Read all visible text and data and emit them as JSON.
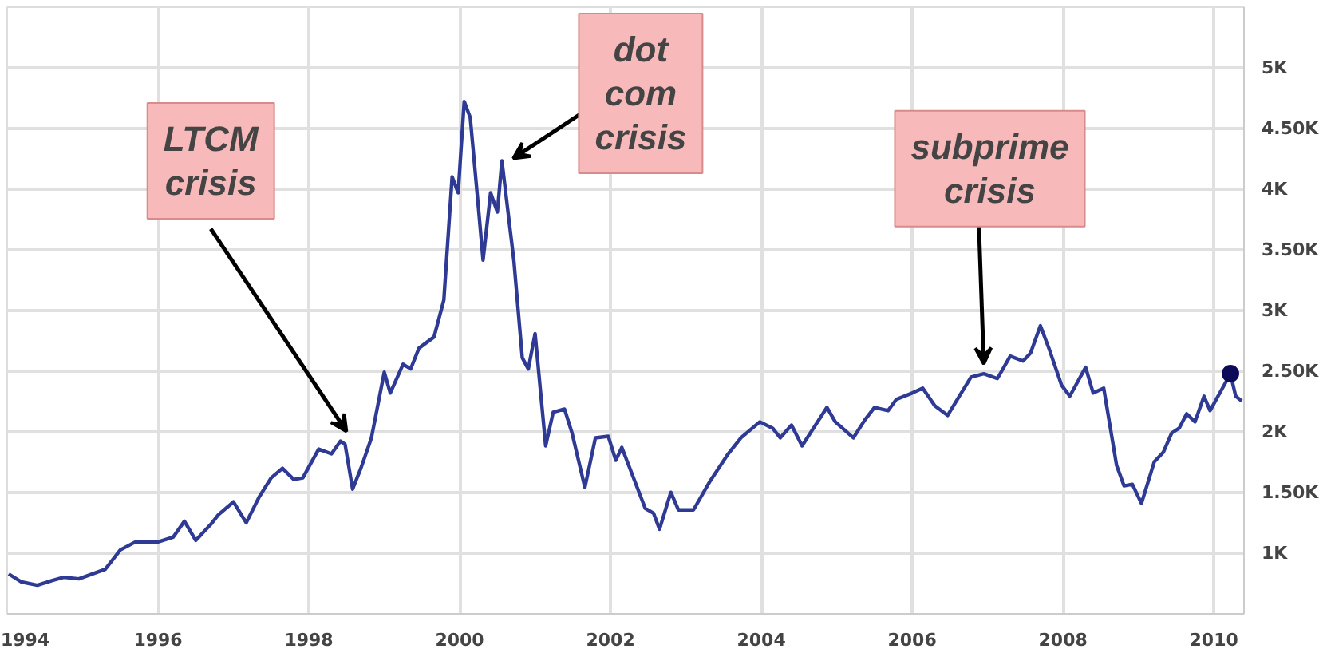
{
  "chart_data": {
    "type": "line",
    "x": [
      1994.02,
      1994.19,
      1994.4,
      1994.6,
      1994.75,
      1994.95,
      1995.3,
      1995.5,
      1995.7,
      1996.0,
      1996.2,
      1996.35,
      1996.5,
      1996.7,
      1996.8,
      1997.0,
      1997.17,
      1997.34,
      1997.5,
      1997.65,
      1997.8,
      1997.92,
      1998.13,
      1998.3,
      1998.42,
      1998.48,
      1998.58,
      1998.69,
      1998.83,
      1999.0,
      1999.08,
      1999.25,
      1999.35,
      1999.46,
      1999.66,
      1999.79,
      1999.9,
      1999.98,
      2000.06,
      2000.14,
      2000.25,
      2000.31,
      2000.41,
      2000.5,
      2000.56,
      2000.72,
      2000.83,
      2000.91,
      2001.0,
      2001.14,
      2001.24,
      2001.39,
      2001.49,
      2001.66,
      2001.8,
      2001.97,
      2002.07,
      2002.15,
      2002.46,
      2002.57,
      2002.65,
      2002.8,
      2002.9,
      2003.1,
      2003.32,
      2003.56,
      2003.73,
      2003.98,
      2004.15,
      2004.25,
      2004.4,
      2004.54,
      2004.87,
      2004.98,
      2005.22,
      2005.37,
      2005.5,
      2005.68,
      2005.79,
      2006.0,
      2006.14,
      2006.3,
      2006.47,
      2006.78,
      2006.95,
      2007.13,
      2007.3,
      2007.47,
      2007.57,
      2007.7,
      2007.82,
      2007.98,
      2008.09,
      2008.3,
      2008.4,
      2008.54,
      2008.71,
      2008.81,
      2008.92,
      2009.04,
      2009.21,
      2009.33,
      2009.44,
      2009.54,
      2009.64,
      2009.75,
      2009.87,
      2009.95,
      2010.22,
      2010.29,
      2010.37
    ],
    "series": [
      {
        "color": "#2e3a94",
        "values": [
          829,
          763,
          736,
          776,
          802,
          789,
          868,
          1027,
          1093,
          1093,
          1132,
          1264,
          1106,
          1238,
          1317,
          1423,
          1251,
          1462,
          1621,
          1700,
          1608,
          1621,
          1858,
          1819,
          1924,
          1898,
          1528,
          1700,
          1951,
          2492,
          2320,
          2558,
          2518,
          2690,
          2782,
          3086,
          4102,
          3970,
          4723,
          4591,
          3838,
          3416,
          3970,
          3812,
          4234,
          3403,
          2611,
          2518,
          2809,
          1885,
          2162,
          2188,
          1990,
          1542,
          1951,
          1964,
          1766,
          1872,
          1370,
          1330,
          1198,
          1502,
          1357,
          1357,
          1594,
          1819,
          1951,
          2083,
          2030,
          1951,
          2056,
          1885,
          2202,
          2083,
          1951,
          2096,
          2202,
          2175,
          2268,
          2320,
          2360,
          2215,
          2136,
          2452,
          2479,
          2439,
          2624,
          2584,
          2650,
          2875,
          2677,
          2386,
          2294,
          2532,
          2320,
          2360,
          1726,
          1555,
          1568,
          1410,
          1753,
          1832,
          1990,
          2030,
          2149,
          2083,
          2294,
          2175,
          2479,
          2294,
          2254
        ]
      },
      {
        "type": "scatter",
        "marker": "circle",
        "color": "#0b0b5a",
        "x": [
          2010.22
        ],
        "values": [
          2480
        ]
      }
    ],
    "xlim": [
      1994,
      2010.4
    ],
    "xticks": [
      1994,
      1996,
      1998,
      2000,
      2002,
      2004,
      2006,
      2008,
      2010
    ],
    "ylim": [
      500,
      5500
    ],
    "yticks": [
      {
        "value": 1000,
        "label": "1K"
      },
      {
        "value": 1500,
        "label": "1.50K"
      },
      {
        "value": 2000,
        "label": "2K"
      },
      {
        "value": 2500,
        "label": "2.50K"
      },
      {
        "value": 3000,
        "label": "3K"
      },
      {
        "value": 3500,
        "label": "3.50K"
      },
      {
        "value": 4000,
        "label": "4K"
      },
      {
        "value": 4500,
        "label": "4.50K"
      },
      {
        "value": 5000,
        "label": "5K"
      }
    ],
    "grid": true,
    "line_style": "solid",
    "annotations": [
      {
        "text": "LTCM\ncrisis",
        "x": 1998.42,
        "y": 1924
      },
      {
        "text": "dot\ncom\ncrisis",
        "x": 2000.56,
        "y": 4234
      },
      {
        "text": "subprime\ncrisis",
        "x": 2006.95,
        "y": 2479
      }
    ]
  }
}
